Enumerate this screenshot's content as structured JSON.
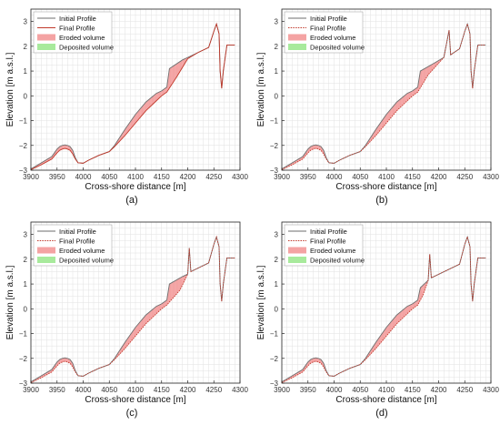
{
  "figure": {
    "xlabel": "Cross-shore distance [m]",
    "ylabel": "Elevation [m a.s.l.]",
    "x_ticks": [
      3900,
      3950,
      4000,
      4050,
      4100,
      4150,
      4200,
      4250,
      4300
    ],
    "y_ticks": [
      -3,
      -2,
      -1,
      0,
      1,
      2,
      3
    ],
    "legend": {
      "initial": "Initial Profile",
      "final": "Final Profile",
      "eroded": "Eroded volume",
      "deposited": "Deposited volume"
    },
    "colors": {
      "initial": "#6e6e6e",
      "final": "#c0392b",
      "eroded": "#f4a3a3",
      "deposited": "#a8ea9c",
      "grid": "#e2e2e2",
      "axis": "#262626"
    }
  },
  "chart_data": [
    {
      "type": "line",
      "caption": "(a)",
      "xlim": [
        3900,
        4300
      ],
      "ylim": [
        -3,
        3.5
      ],
      "grid": true,
      "legend_position": "top-left",
      "final_style": "solid",
      "series": [
        {
          "name": "Initial Profile",
          "x": [
            3900,
            3920,
            3940,
            3950,
            3955,
            3960,
            3965,
            3970,
            3975,
            3980,
            3985,
            3990,
            4000,
            4010,
            4030,
            4050,
            4060,
            4080,
            4100,
            4120,
            4140,
            4150,
            4160,
            4165,
            4190,
            4200,
            4220,
            4240,
            4250,
            4255,
            4260,
            4262,
            4265,
            4268,
            4275,
            4290
          ],
          "y": [
            -2.95,
            -2.7,
            -2.45,
            -2.15,
            -2.05,
            -2.0,
            -1.98,
            -2.0,
            -2.05,
            -2.2,
            -2.5,
            -2.7,
            -2.72,
            -2.6,
            -2.4,
            -2.25,
            -2.0,
            -1.35,
            -0.75,
            -0.25,
            0.1,
            0.2,
            0.35,
            1.1,
            1.45,
            1.55,
            1.75,
            1.95,
            2.6,
            2.9,
            2.5,
            1.0,
            0.3,
            1.0,
            2.05,
            2.05
          ]
        },
        {
          "name": "Final Profile",
          "x": [
            3900,
            3920,
            3940,
            3950,
            3955,
            3960,
            3965,
            3970,
            3975,
            3980,
            3985,
            3990,
            4000,
            4010,
            4030,
            4050,
            4060,
            4080,
            4100,
            4120,
            4140,
            4150,
            4160,
            4180,
            4200,
            4220,
            4240,
            4250,
            4255,
            4260,
            4262,
            4265,
            4268,
            4275,
            4290
          ],
          "y": [
            -2.98,
            -2.78,
            -2.55,
            -2.3,
            -2.2,
            -2.15,
            -2.12,
            -2.15,
            -2.2,
            -2.35,
            -2.55,
            -2.7,
            -2.72,
            -2.6,
            -2.4,
            -2.25,
            -2.05,
            -1.6,
            -1.1,
            -0.6,
            -0.2,
            0.0,
            0.15,
            0.8,
            1.5,
            1.75,
            1.95,
            2.6,
            2.9,
            2.5,
            1.0,
            0.3,
            1.0,
            2.05,
            2.05
          ]
        }
      ]
    },
    {
      "type": "line",
      "caption": "(b)",
      "xlim": [
        3900,
        4300
      ],
      "ylim": [
        -3,
        3.5
      ],
      "grid": true,
      "legend_position": "top-left",
      "final_style": "dotted",
      "series": [
        {
          "name": "Initial Profile",
          "x": [
            3900,
            3920,
            3940,
            3950,
            3955,
            3960,
            3965,
            3970,
            3975,
            3980,
            3985,
            3990,
            4000,
            4010,
            4030,
            4050,
            4060,
            4080,
            4100,
            4120,
            4140,
            4150,
            4160,
            4165,
            4190,
            4210,
            4220,
            4223,
            4226,
            4240,
            4250,
            4255,
            4260,
            4262,
            4265,
            4268,
            4275,
            4290
          ],
          "y": [
            -2.95,
            -2.7,
            -2.45,
            -2.15,
            -2.05,
            -2.0,
            -1.98,
            -2.0,
            -2.05,
            -2.2,
            -2.5,
            -2.7,
            -2.72,
            -2.6,
            -2.4,
            -2.25,
            -2.0,
            -1.35,
            -0.75,
            -0.25,
            0.1,
            0.2,
            0.35,
            1.0,
            1.3,
            1.55,
            2.65,
            1.65,
            1.7,
            1.9,
            2.6,
            2.9,
            2.5,
            1.0,
            0.3,
            1.0,
            2.05,
            2.05
          ]
        },
        {
          "name": "Final Profile",
          "x": [
            3900,
            3920,
            3940,
            3950,
            3955,
            3960,
            3965,
            3970,
            3975,
            3980,
            3985,
            3990,
            4000,
            4010,
            4030,
            4050,
            4060,
            4080,
            4100,
            4120,
            4140,
            4150,
            4160,
            4180,
            4210,
            4220,
            4223,
            4226,
            4240,
            4250,
            4255,
            4260,
            4262,
            4265,
            4268,
            4275,
            4290
          ],
          "y": [
            -2.98,
            -2.78,
            -2.55,
            -2.3,
            -2.2,
            -2.15,
            -2.12,
            -2.15,
            -2.2,
            -2.35,
            -2.55,
            -2.7,
            -2.72,
            -2.6,
            -2.4,
            -2.25,
            -2.05,
            -1.6,
            -1.1,
            -0.6,
            -0.2,
            0.0,
            0.15,
            0.85,
            1.55,
            2.65,
            1.65,
            1.7,
            1.9,
            2.6,
            2.9,
            2.5,
            1.0,
            0.3,
            1.0,
            2.05,
            2.05
          ]
        }
      ]
    },
    {
      "type": "line",
      "caption": "(c)",
      "xlim": [
        3900,
        4300
      ],
      "ylim": [
        -3,
        3.5
      ],
      "grid": true,
      "legend_position": "top-left",
      "final_style": "dotted",
      "series": [
        {
          "name": "Initial Profile",
          "x": [
            3900,
            3920,
            3940,
            3950,
            3955,
            3960,
            3965,
            3970,
            3975,
            3980,
            3985,
            3990,
            4000,
            4010,
            4030,
            4050,
            4060,
            4080,
            4100,
            4120,
            4140,
            4150,
            4160,
            4165,
            4190,
            4200,
            4203,
            4206,
            4240,
            4250,
            4255,
            4260,
            4262,
            4265,
            4268,
            4275,
            4290
          ],
          "y": [
            -2.95,
            -2.7,
            -2.45,
            -2.15,
            -2.05,
            -2.0,
            -1.98,
            -2.0,
            -2.05,
            -2.2,
            -2.5,
            -2.7,
            -2.72,
            -2.6,
            -2.4,
            -2.25,
            -2.0,
            -1.35,
            -0.75,
            -0.25,
            0.1,
            0.2,
            0.35,
            1.0,
            1.3,
            1.4,
            2.45,
            1.5,
            1.85,
            2.6,
            2.9,
            2.5,
            1.0,
            0.3,
            1.0,
            2.05,
            2.05
          ]
        },
        {
          "name": "Final Profile",
          "x": [
            3900,
            3920,
            3940,
            3950,
            3955,
            3960,
            3965,
            3970,
            3975,
            3980,
            3985,
            3990,
            4000,
            4010,
            4030,
            4050,
            4060,
            4080,
            4100,
            4120,
            4140,
            4150,
            4160,
            4185,
            4200,
            4203,
            4206,
            4240,
            4250,
            4255,
            4260,
            4262,
            4265,
            4268,
            4275,
            4290
          ],
          "y": [
            -2.98,
            -2.78,
            -2.55,
            -2.3,
            -2.2,
            -2.15,
            -2.12,
            -2.15,
            -2.2,
            -2.35,
            -2.55,
            -2.7,
            -2.72,
            -2.6,
            -2.4,
            -2.25,
            -2.05,
            -1.6,
            -1.1,
            -0.6,
            -0.2,
            0.0,
            0.15,
            0.75,
            1.4,
            2.45,
            1.5,
            1.85,
            2.6,
            2.9,
            2.5,
            1.0,
            0.3,
            1.0,
            2.05,
            2.05
          ]
        }
      ]
    },
    {
      "type": "line",
      "caption": "(d)",
      "xlim": [
        3900,
        4300
      ],
      "ylim": [
        -3,
        3.5
      ],
      "grid": true,
      "legend_position": "top-left",
      "final_style": "dotted",
      "series": [
        {
          "name": "Initial Profile",
          "x": [
            3900,
            3920,
            3940,
            3950,
            3955,
            3960,
            3965,
            3970,
            3975,
            3980,
            3985,
            3990,
            4000,
            4010,
            4030,
            4050,
            4060,
            4080,
            4100,
            4120,
            4140,
            4150,
            4160,
            4165,
            4175,
            4180,
            4183,
            4186,
            4240,
            4250,
            4255,
            4260,
            4262,
            4265,
            4268,
            4275,
            4290
          ],
          "y": [
            -2.95,
            -2.7,
            -2.45,
            -2.15,
            -2.05,
            -2.0,
            -1.98,
            -2.0,
            -2.05,
            -2.2,
            -2.5,
            -2.7,
            -2.72,
            -2.6,
            -2.4,
            -2.25,
            -2.0,
            -1.35,
            -0.75,
            -0.25,
            0.1,
            0.2,
            0.35,
            0.85,
            1.05,
            1.15,
            2.2,
            1.25,
            1.8,
            2.6,
            2.9,
            2.5,
            1.0,
            0.3,
            1.0,
            2.05,
            2.05
          ]
        },
        {
          "name": "Final Profile",
          "x": [
            3900,
            3920,
            3940,
            3950,
            3955,
            3960,
            3965,
            3970,
            3975,
            3980,
            3985,
            3990,
            4000,
            4010,
            4030,
            4050,
            4060,
            4080,
            4100,
            4120,
            4140,
            4150,
            4160,
            4170,
            4180,
            4183,
            4186,
            4240,
            4250,
            4255,
            4260,
            4262,
            4265,
            4268,
            4275,
            4290
          ],
          "y": [
            -2.98,
            -2.78,
            -2.55,
            -2.3,
            -2.2,
            -2.15,
            -2.12,
            -2.15,
            -2.2,
            -2.35,
            -2.55,
            -2.7,
            -2.72,
            -2.6,
            -2.4,
            -2.25,
            -2.05,
            -1.6,
            -1.1,
            -0.6,
            -0.2,
            0.0,
            0.15,
            0.55,
            1.15,
            2.2,
            1.25,
            1.8,
            2.6,
            2.9,
            2.5,
            1.0,
            0.3,
            1.0,
            2.05,
            2.05
          ]
        }
      ]
    }
  ]
}
